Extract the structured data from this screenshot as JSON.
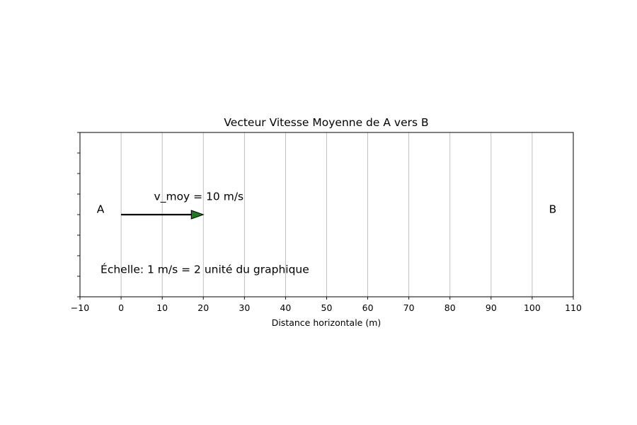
{
  "chart_data": {
    "type": "scatter",
    "title": "Vecteur Vitesse Moyenne de A vers B",
    "xlabel": "Distance horizontale (m)",
    "ylabel": "",
    "xlim": [
      -10,
      110
    ],
    "ylim": [
      -2,
      2
    ],
    "xticks": [
      -10,
      0,
      10,
      20,
      30,
      40,
      50,
      60,
      70,
      80,
      90,
      100,
      110
    ],
    "xtick_labels": [
      "−10",
      "0",
      "10",
      "20",
      "30",
      "40",
      "50",
      "60",
      "70",
      "80",
      "90",
      "100",
      "110"
    ],
    "yticks": [
      -2,
      -1.5,
      -1,
      -0.5,
      0,
      0.5,
      1,
      1.5,
      2
    ],
    "grid": "x",
    "points": [
      {
        "label": "A",
        "x": -5,
        "y": 0.13
      },
      {
        "label": "B",
        "x": 105,
        "y": 0.13
      }
    ],
    "vector": {
      "x_start": 0,
      "y_start": 0,
      "x_end": 20,
      "y_end": 0,
      "label": "v_moy = 10 m/s",
      "label_x": 8,
      "label_y": 0.35,
      "color": "#1a7d1a"
    },
    "annotation": {
      "text": "Échelle: 1 m/s = 2 unité du graphique",
      "x": -5,
      "y": -1.42
    }
  }
}
